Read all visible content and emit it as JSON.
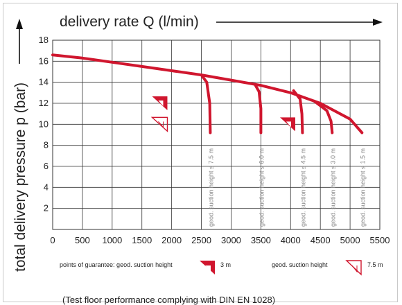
{
  "chart_data": {
    "type": "line",
    "xlabel": "delivery rate Q (l/min)",
    "ylabel": "total delivery pressure p (bar)",
    "xlim": [
      0,
      5500
    ],
    "ylim": [
      0,
      18
    ],
    "xticks": [
      0,
      500,
      1000,
      1500,
      2000,
      2500,
      3000,
      3500,
      4000,
      4500,
      5000,
      5500
    ],
    "yticks": [
      2,
      4,
      6,
      8,
      10,
      12,
      14,
      16,
      18
    ],
    "grid": true,
    "main_curve": {
      "x": [
        0,
        500,
        1000,
        1500,
        2000,
        2500,
        3000,
        3500,
        4000,
        4500,
        5000,
        5200
      ],
      "y": [
        16.6,
        16.3,
        15.9,
        15.5,
        15.1,
        14.7,
        14.2,
        13.7,
        13.0,
        12.0,
        10.5,
        9.2
      ]
    },
    "drop_curves": [
      {
        "label": "geod. suction height ≤ 7.5 m",
        "x": [
          2500,
          2590,
          2640,
          2650
        ],
        "y": [
          14.7,
          14.0,
          12.0,
          9.2
        ]
      },
      {
        "label": "geod. suction height ≤ 6.0 m",
        "x": [
          3400,
          3470,
          3500,
          3500
        ],
        "y": [
          13.8,
          13.1,
          11.5,
          9.2
        ]
      },
      {
        "label": "geod. suction height ≤ 4.5 m",
        "x": [
          4050,
          4160,
          4190,
          4200
        ],
        "y": [
          13.2,
          12.4,
          11.0,
          9.2
        ]
      },
      {
        "label": "geod. suction height ≤ 3.0 m",
        "x": [
          4400,
          4610,
          4680,
          4700
        ],
        "y": [
          12.2,
          11.3,
          10.3,
          9.2
        ]
      }
    ],
    "guarantee_markers": [
      {
        "kind": "3m",
        "x": 1800,
        "y": 12.0
      },
      {
        "kind": "3m",
        "x": 3950,
        "y": 10.0
      },
      {
        "kind": "7.5m",
        "x": 1800,
        "y": 10.0
      }
    ],
    "legend": {
      "item1_label": "points of guarantee: geod. suction height",
      "item1_value": "3 m",
      "item2_label": "geod. suction height",
      "item2_value": "7.5 m"
    },
    "footnote": "(Test floor performance complying with DIN EN 1028)",
    "colors": {
      "curve": "#d0162e",
      "grid": "#333333",
      "label": "#8a8a8a"
    }
  }
}
